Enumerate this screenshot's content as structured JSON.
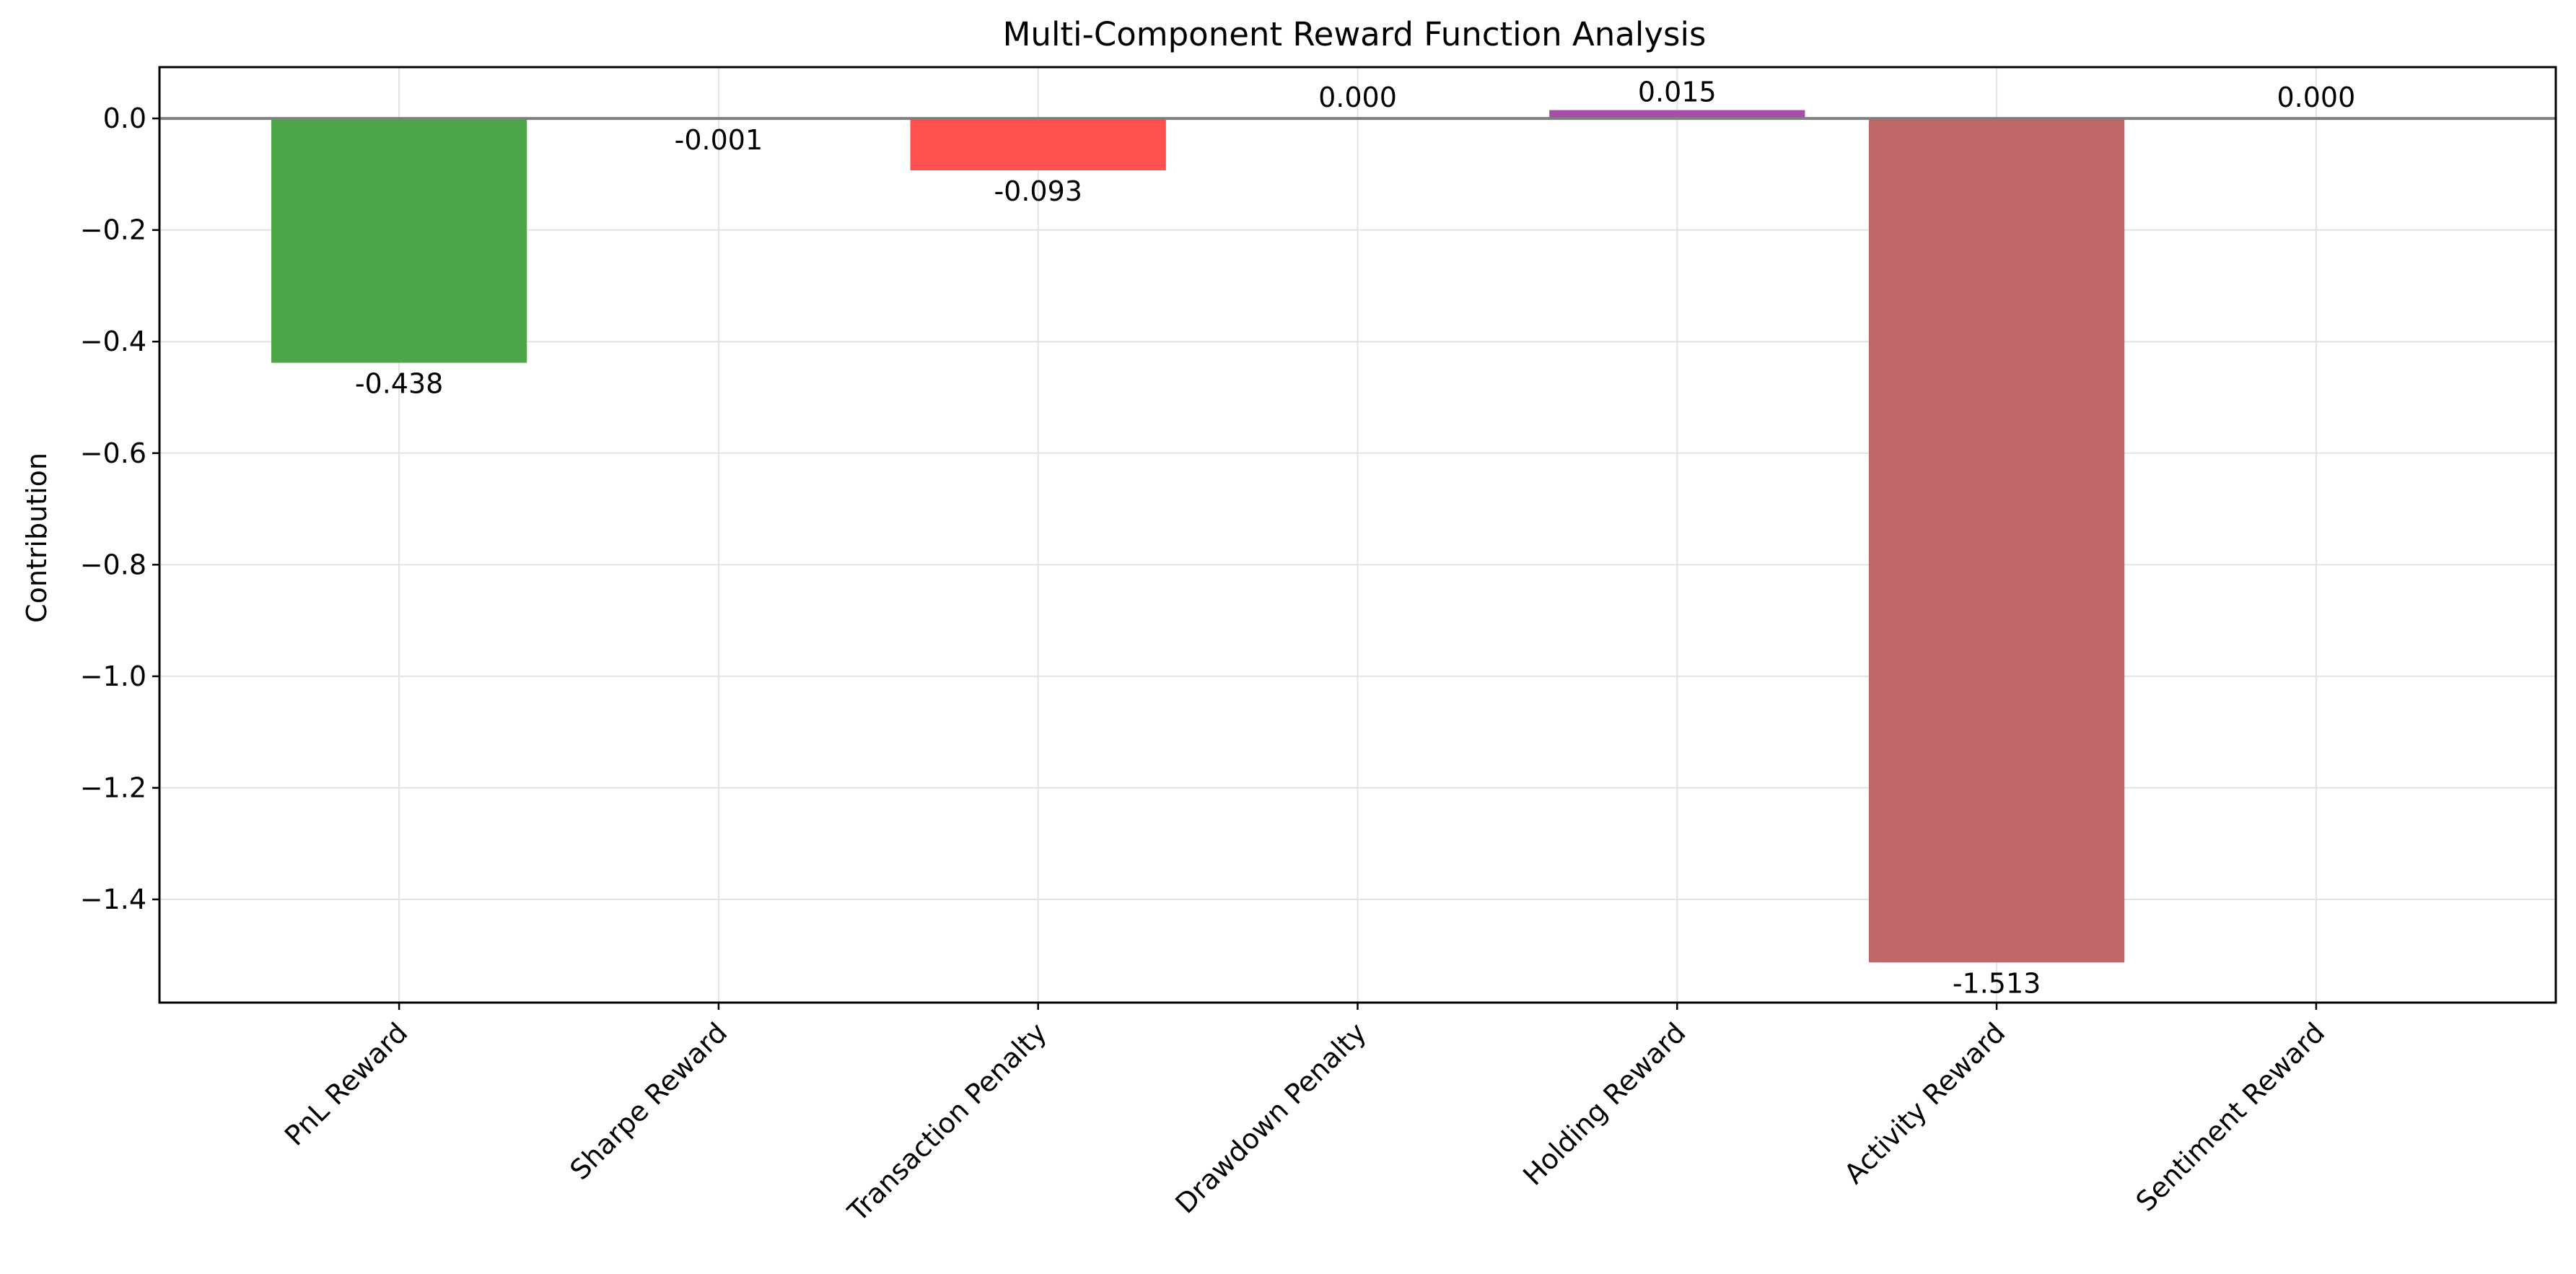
{
  "chart_data": {
    "type": "bar",
    "title": "Multi-Component Reward Function Analysis",
    "xlabel": "",
    "ylabel": "Contribution",
    "categories": [
      "PnL Reward",
      "Sharpe Reward",
      "Transaction Penalty",
      "Drawdown Penalty",
      "Holding Reward",
      "Activity Reward",
      "Sentiment Reward"
    ],
    "values": [
      -0.438,
      -0.001,
      -0.093,
      0.0,
      0.015,
      -1.513,
      0.0
    ],
    "value_labels": [
      "-0.438",
      "-0.001",
      "-0.093",
      "0.000",
      "0.015",
      "-1.513",
      "0.000"
    ],
    "bar_colors": [
      "#4ea64a",
      "#dab8d8",
      "#ff4f4f",
      "#e7b383",
      "#a94ca9",
      "#c06868",
      "#c9a9c9"
    ],
    "bar_opacity": 1,
    "ylim": [
      -1.585,
      0.092
    ],
    "yticks": [
      0.0,
      -0.2,
      -0.4,
      -0.6,
      -0.8,
      -1.0,
      -1.2,
      -1.4
    ],
    "ytick_labels": [
      "0.0",
      "−0.2",
      "−0.4",
      "−0.6",
      "−0.8",
      "−1.0",
      "−1.2",
      "−1.4"
    ],
    "zero_line": true,
    "zero_line_color": "#7f7f7f",
    "grid": true,
    "grid_color": "#e3e3e3",
    "tick_rotation_deg": 45,
    "legend": "none"
  }
}
